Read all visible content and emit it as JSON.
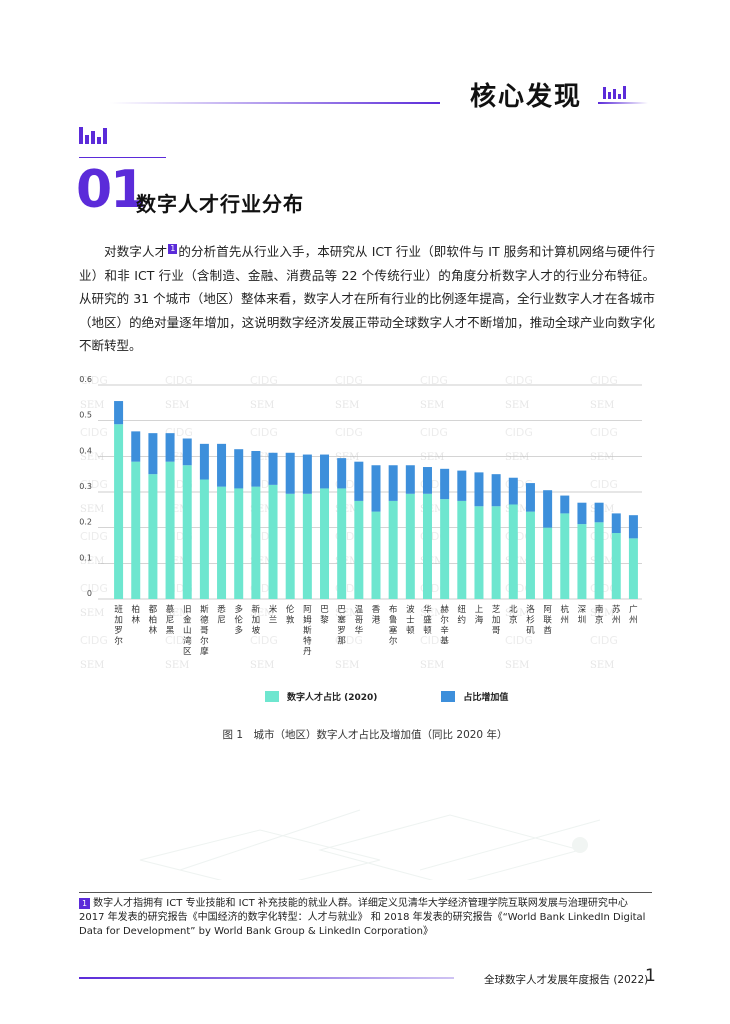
{
  "header": {
    "title": "核心发现"
  },
  "section": {
    "number": "01",
    "title": "数字人才行业分布"
  },
  "body": {
    "part1": "对数字人才",
    "fn_ref": "1",
    "part2": "的分析首先从行业入手，本研究从 ICT 行业（即软件与 IT 服务和计算机网络与硬件行业）和非 ICT 行业（含制造、金融、消费品等 22 个传统行业）的角度分析数字人才的行业分布特征。从研究的 31 个城市（地区）整体来看，数字人才在所有行业的比例逐年提高，全行业数字人才在各城市（地区）的绝对量逐年增加，这说明数字经济发展正带动全球数字人才不断增加，推动全球产业向数字化不断转型。"
  },
  "chart_data": {
    "type": "bar",
    "stacked": true,
    "categories": [
      "班加罗尔",
      "柏林",
      "都柏林",
      "慕尼黑",
      "旧金山湾区",
      "斯德哥尔摩",
      "悉尼",
      "多伦多",
      "新加坡",
      "米兰",
      "伦敦",
      "阿姆斯特丹",
      "巴黎",
      "巴塞罗那",
      "温哥华",
      "香港",
      "布鲁塞尔",
      "波士顿",
      "华盛顿",
      "赫尔辛基",
      "纽约",
      "上海",
      "芝加哥",
      "北京",
      "洛杉矶",
      "阿联酋",
      "杭州",
      "深圳",
      "南京",
      "苏州",
      "广州"
    ],
    "series": [
      {
        "name": "数字人才占比 (2020)",
        "color": "#6ee6cf",
        "values": [
          0.49,
          0.385,
          0.35,
          0.385,
          0.375,
          0.335,
          0.315,
          0.31,
          0.315,
          0.32,
          0.295,
          0.295,
          0.31,
          0.31,
          0.275,
          0.245,
          0.275,
          0.295,
          0.295,
          0.28,
          0.275,
          0.26,
          0.26,
          0.265,
          0.245,
          0.2,
          0.24,
          0.21,
          0.215,
          0.185,
          0.17
        ]
      },
      {
        "name": "占比增加值",
        "color": "#3d8fdb",
        "values": [
          0.065,
          0.085,
          0.115,
          0.08,
          0.075,
          0.1,
          0.12,
          0.11,
          0.1,
          0.09,
          0.115,
          0.11,
          0.095,
          0.085,
          0.11,
          0.13,
          0.1,
          0.08,
          0.075,
          0.085,
          0.085,
          0.095,
          0.09,
          0.075,
          0.08,
          0.105,
          0.05,
          0.06,
          0.055,
          0.055,
          0.065
        ]
      }
    ],
    "ylim": [
      0,
      0.6
    ],
    "yticks": [
      "0",
      "0.1",
      "0.2",
      "0.3",
      "0.4",
      "0.5",
      "0.6"
    ],
    "grid": true,
    "legend_position": "bottom",
    "watermark_text": [
      "CIDG",
      "SEM"
    ]
  },
  "caption": "图 1　城市（地区）数字人才占比及增加值（同比 2020 年）",
  "footnote": {
    "num": "1",
    "text": "数字人才指拥有 ICT 专业技能和 ICT 补充技能的就业人群。详细定义见清华大学经济管理学院互联网发展与治理研究中心 2017 年发表的研究报告《中国经济的数字化转型：人才与就业》 和 2018 年发表的研究报告《“World Bank LinkedIn Digital Data for Development” by World Bank Group & LinkedIn Corporation》"
  },
  "footer": {
    "report_title": "全球数字人才发展年度报告 (2022)",
    "page": "1"
  }
}
